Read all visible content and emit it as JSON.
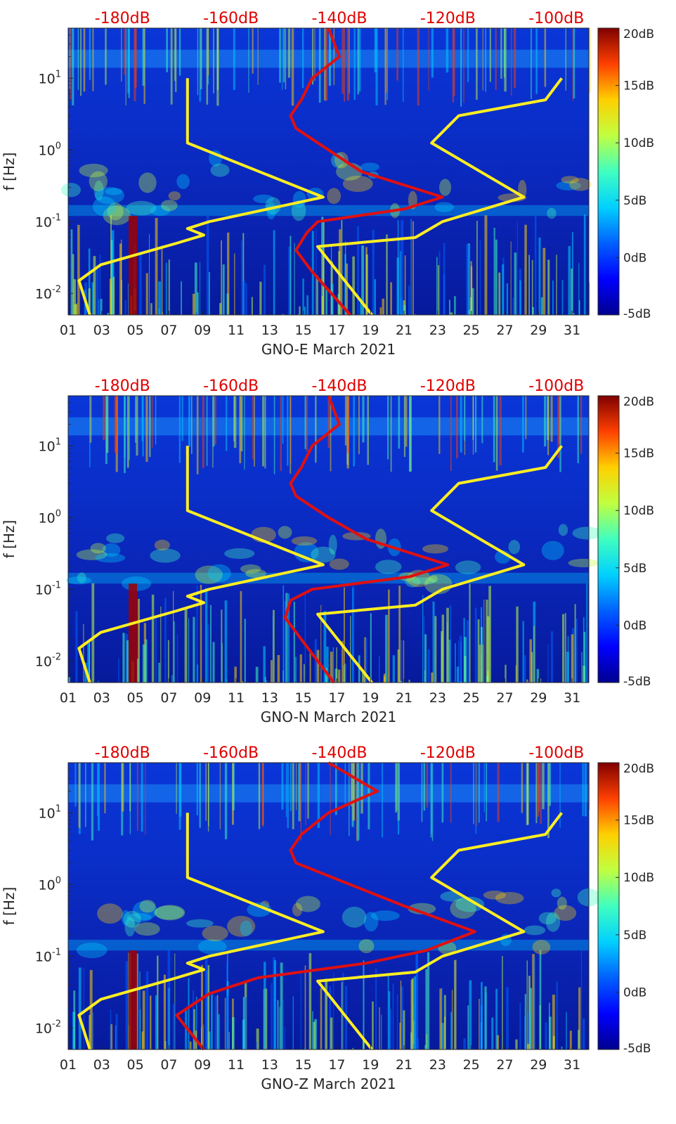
{
  "colors": {
    "noise_model": "#ffee22",
    "median_psd": "#e01010",
    "top_db_labels": "#e00000",
    "colormap": [
      "#00008f",
      "#0000ff",
      "#0080ff",
      "#00ffff",
      "#80ff80",
      "#ffff00",
      "#ff8000",
      "#ff0000",
      "#800000"
    ]
  },
  "chart_data": [
    {
      "type": "heatmap",
      "component": "GNO-E",
      "xlabel": "GNO-E March 2021",
      "ylabel": "f [Hz]",
      "x_ticks": [
        "01",
        "03",
        "05",
        "07",
        "09",
        "11",
        "13",
        "15",
        "17",
        "19",
        "21",
        "23",
        "25",
        "27",
        "29",
        "31"
      ],
      "xlim": [
        1,
        32
      ],
      "ylim_hz": [
        0.005,
        50
      ],
      "y_scale": "log",
      "y_ticks": [
        "10^1",
        "10^0",
        "10^-1",
        "10^-2"
      ],
      "top_db_axis": {
        "labels": [
          "-180dB",
          "-160dB",
          "-140dB",
          "-120dB",
          "-100dB"
        ],
        "values_db": [
          -180,
          -160,
          -140,
          -120,
          -100
        ],
        "range_db": [
          -190,
          -94
        ]
      },
      "colorbar": {
        "labels": [
          "20dB",
          "15dB",
          "10dB",
          "5dB",
          "0dB",
          "-5dB"
        ],
        "range_db": [
          -5,
          20
        ]
      },
      "noise_models": {
        "low": [
          [
            0.005,
            -186
          ],
          [
            0.015,
            -188
          ],
          [
            0.025,
            -184
          ],
          [
            0.05,
            -170
          ],
          [
            0.065,
            -165
          ],
          [
            0.08,
            -168
          ],
          [
            0.1,
            -164
          ],
          [
            0.22,
            -143
          ],
          [
            1.25,
            -168
          ],
          [
            10,
            -168
          ]
        ],
        "high": [
          [
            0.005,
            -134
          ],
          [
            0.045,
            -144
          ],
          [
            0.06,
            -126
          ],
          [
            0.1,
            -121
          ],
          [
            0.22,
            -106
          ],
          [
            1.25,
            -123
          ],
          [
            3,
            -118
          ],
          [
            5,
            -102
          ],
          [
            10,
            -99
          ]
        ]
      },
      "median_psd": [
        [
          0.005,
          -138
        ],
        [
          0.02,
          -145
        ],
        [
          0.04,
          -148
        ],
        [
          0.07,
          -146
        ],
        [
          0.1,
          -144
        ],
        [
          0.15,
          -128
        ],
        [
          0.22,
          -121
        ],
        [
          0.5,
          -136
        ],
        [
          1,
          -142
        ],
        [
          2,
          -148
        ],
        [
          3,
          -149
        ],
        [
          5,
          -147
        ],
        [
          10,
          -145
        ],
        [
          20,
          -140
        ],
        [
          50,
          -142
        ]
      ]
    },
    {
      "type": "heatmap",
      "component": "GNO-N",
      "xlabel": "GNO-N March 2021",
      "ylabel": "f [Hz]",
      "x_ticks": [
        "01",
        "03",
        "05",
        "07",
        "09",
        "11",
        "13",
        "15",
        "17",
        "19",
        "21",
        "23",
        "25",
        "27",
        "29",
        "31"
      ],
      "xlim": [
        1,
        32
      ],
      "ylim_hz": [
        0.005,
        50
      ],
      "y_scale": "log",
      "y_ticks": [
        "10^1",
        "10^0",
        "10^-1",
        "10^-2"
      ],
      "top_db_axis": {
        "labels": [
          "-180dB",
          "-160dB",
          "-140dB",
          "-120dB",
          "-100dB"
        ],
        "values_db": [
          -180,
          -160,
          -140,
          -120,
          -100
        ],
        "range_db": [
          -190,
          -94
        ]
      },
      "colorbar": {
        "labels": [
          "20dB",
          "15dB",
          "10dB",
          "5dB",
          "0dB",
          "-5dB"
        ],
        "range_db": [
          -5,
          20
        ]
      },
      "noise_models": {
        "low": [
          [
            0.005,
            -186
          ],
          [
            0.015,
            -188
          ],
          [
            0.025,
            -184
          ],
          [
            0.05,
            -170
          ],
          [
            0.065,
            -165
          ],
          [
            0.08,
            -168
          ],
          [
            0.1,
            -164
          ],
          [
            0.22,
            -143
          ],
          [
            1.25,
            -168
          ],
          [
            10,
            -168
          ]
        ],
        "high": [
          [
            0.005,
            -134
          ],
          [
            0.045,
            -144
          ],
          [
            0.06,
            -126
          ],
          [
            0.1,
            -121
          ],
          [
            0.22,
            -106
          ],
          [
            1.25,
            -123
          ],
          [
            3,
            -118
          ],
          [
            5,
            -102
          ],
          [
            10,
            -99
          ]
        ]
      },
      "median_psd": [
        [
          0.005,
          -141
        ],
        [
          0.02,
          -147
        ],
        [
          0.04,
          -150
        ],
        [
          0.07,
          -149
        ],
        [
          0.1,
          -145
        ],
        [
          0.15,
          -127
        ],
        [
          0.22,
          -120
        ],
        [
          0.5,
          -135
        ],
        [
          1,
          -142
        ],
        [
          2,
          -148
        ],
        [
          3,
          -149
        ],
        [
          5,
          -147
        ],
        [
          10,
          -145
        ],
        [
          20,
          -140
        ],
        [
          50,
          -142
        ]
      ]
    },
    {
      "type": "heatmap",
      "component": "GNO-Z",
      "xlabel": "GNO-Z March 2021",
      "ylabel": "f [Hz]",
      "x_ticks": [
        "01",
        "03",
        "05",
        "07",
        "09",
        "11",
        "13",
        "15",
        "17",
        "19",
        "21",
        "23",
        "25",
        "27",
        "29",
        "31"
      ],
      "xlim": [
        1,
        32
      ],
      "ylim_hz": [
        0.005,
        50
      ],
      "y_scale": "log",
      "y_ticks": [
        "10^1",
        "10^0",
        "10^-1",
        "10^-2"
      ],
      "top_db_axis": {
        "labels": [
          "-180dB",
          "-160dB",
          "-140dB",
          "-120dB",
          "-100dB"
        ],
        "values_db": [
          -180,
          -160,
          -140,
          -120,
          -100
        ],
        "range_db": [
          -190,
          -94
        ]
      },
      "colorbar": {
        "labels": [
          "20dB",
          "15dB",
          "10dB",
          "5dB",
          "0dB",
          "-5dB"
        ],
        "range_db": [
          -5,
          20
        ]
      },
      "noise_models": {
        "low": [
          [
            0.005,
            -186
          ],
          [
            0.015,
            -188
          ],
          [
            0.025,
            -184
          ],
          [
            0.05,
            -170
          ],
          [
            0.065,
            -165
          ],
          [
            0.08,
            -168
          ],
          [
            0.1,
            -164
          ],
          [
            0.22,
            -143
          ],
          [
            1.25,
            -168
          ],
          [
            10,
            -168
          ]
        ],
        "high": [
          [
            0.005,
            -134
          ],
          [
            0.045,
            -144
          ],
          [
            0.06,
            -126
          ],
          [
            0.1,
            -121
          ],
          [
            0.22,
            -106
          ],
          [
            1.25,
            -123
          ],
          [
            3,
            -118
          ],
          [
            5,
            -102
          ],
          [
            10,
            -99
          ]
        ]
      },
      "median_psd": [
        [
          0.005,
          -165
        ],
        [
          0.015,
          -170
        ],
        [
          0.03,
          -164
        ],
        [
          0.05,
          -155
        ],
        [
          0.08,
          -135
        ],
        [
          0.12,
          -124
        ],
        [
          0.22,
          -115
        ],
        [
          0.5,
          -128
        ],
        [
          1,
          -138
        ],
        [
          2,
          -148
        ],
        [
          3,
          -149
        ],
        [
          5,
          -147
        ],
        [
          10,
          -142
        ],
        [
          20,
          -133
        ],
        [
          50,
          -142
        ]
      ]
    }
  ]
}
